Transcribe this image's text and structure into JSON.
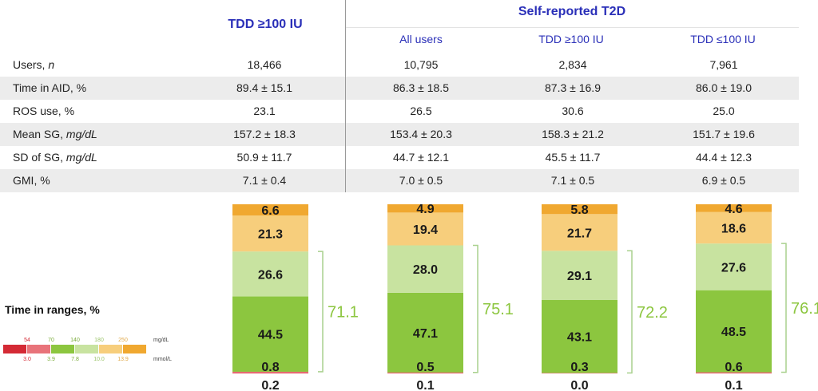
{
  "table": {
    "header_main": "TDD ≥100 IU",
    "header_group": "Self-reported T2D",
    "subheaders": [
      "All users",
      "TDD ≥100 IU",
      "TDD ≤100 IU"
    ],
    "rows": [
      {
        "label": "Users, ",
        "unit": "n",
        "values": [
          "18,466",
          "10,795",
          "2,834",
          "7,961"
        ]
      },
      {
        "label": "Time in AID, %",
        "unit": "",
        "values": [
          "89.4 ± 15.1",
          "86.3 ± 18.5",
          "87.3 ± 16.9",
          "86.0 ± 19.0"
        ]
      },
      {
        "label": "ROS use, %",
        "unit": "",
        "values": [
          "23.1",
          "26.5",
          "30.6",
          "25.0"
        ]
      },
      {
        "label": "Mean SG, ",
        "unit": "mg/dL",
        "values": [
          "157.2 ± 18.3",
          "153.4 ± 20.3",
          "158.3 ± 21.2",
          "151.7 ±  19.6"
        ]
      },
      {
        "label": "SD of SG, ",
        "unit": "mg/dL",
        "values": [
          "50.9 ± 11.7",
          "44.7 ± 12.1",
          "45.5 ± 11.7",
          "44.4 ± 12.3"
        ]
      },
      {
        "label": "GMI, %",
        "unit": "",
        "values": [
          "7.1 ± 0.4",
          "7.0 ± 0.5",
          "7.1 ± 0.5",
          "6.9 ± 0.5"
        ]
      }
    ]
  },
  "chart_data": {
    "type": "bar",
    "stacked": true,
    "title": "Time in ranges, %",
    "categories": [
      "TDD ≥100 IU",
      "All users",
      "TDD ≥100 IU",
      "TDD ≤100 IU"
    ],
    "series": [
      {
        "range": "<54 mg/dL",
        "color": "#d42a35",
        "values": [
          0.2,
          0.1,
          0.0,
          0.1
        ],
        "labels": [
          "0.2",
          "0.1",
          "0.0",
          "0.1"
        ]
      },
      {
        "range": "54-70 mg/dL",
        "color": "#e8737a",
        "values": [
          0.8,
          0.5,
          0.3,
          0.6
        ],
        "labels": [
          "0.8",
          "0.5",
          "0.3",
          "0.6"
        ]
      },
      {
        "range": "70-140 mg/dL",
        "color": "#8cc63f",
        "values": [
          44.5,
          47.1,
          43.1,
          48.5
        ],
        "labels": [
          "44.5",
          "47.1",
          "43.1",
          "48.5"
        ]
      },
      {
        "range": "140-180 mg/dL",
        "color": "#c8e3a0",
        "values": [
          26.6,
          28.0,
          29.1,
          27.6
        ],
        "labels": [
          "26.6",
          "28.0",
          "29.1",
          "27.6"
        ]
      },
      {
        "range": "180-250 mg/dL",
        "color": "#f7ce7c",
        "values": [
          21.3,
          19.4,
          21.7,
          18.6
        ],
        "labels": [
          "21.3",
          "19.4",
          "21.7",
          "18.6"
        ]
      },
      {
        "range": ">250 mg/dL",
        "color": "#f0a830",
        "values": [
          6.6,
          4.9,
          5.8,
          4.6
        ],
        "labels": [
          "6.6",
          "4.9",
          "5.8",
          "4.6"
        ]
      }
    ],
    "range_totals": [
      "71.1",
      "75.1",
      "72.2",
      "76.1"
    ],
    "legend": {
      "mgdl": [
        "54",
        "70",
        "140",
        "180",
        "250"
      ],
      "mgdl_unit": "mg/dL",
      "mmol": [
        "3.0",
        "3.9",
        "7.8",
        "10.0",
        "13.9"
      ],
      "mmol_unit": "mmol/L",
      "colors": [
        "#d42a35",
        "#e8737a",
        "#8cc63f",
        "#c8e3a0",
        "#f7ce7c",
        "#f0a830"
      ]
    }
  }
}
